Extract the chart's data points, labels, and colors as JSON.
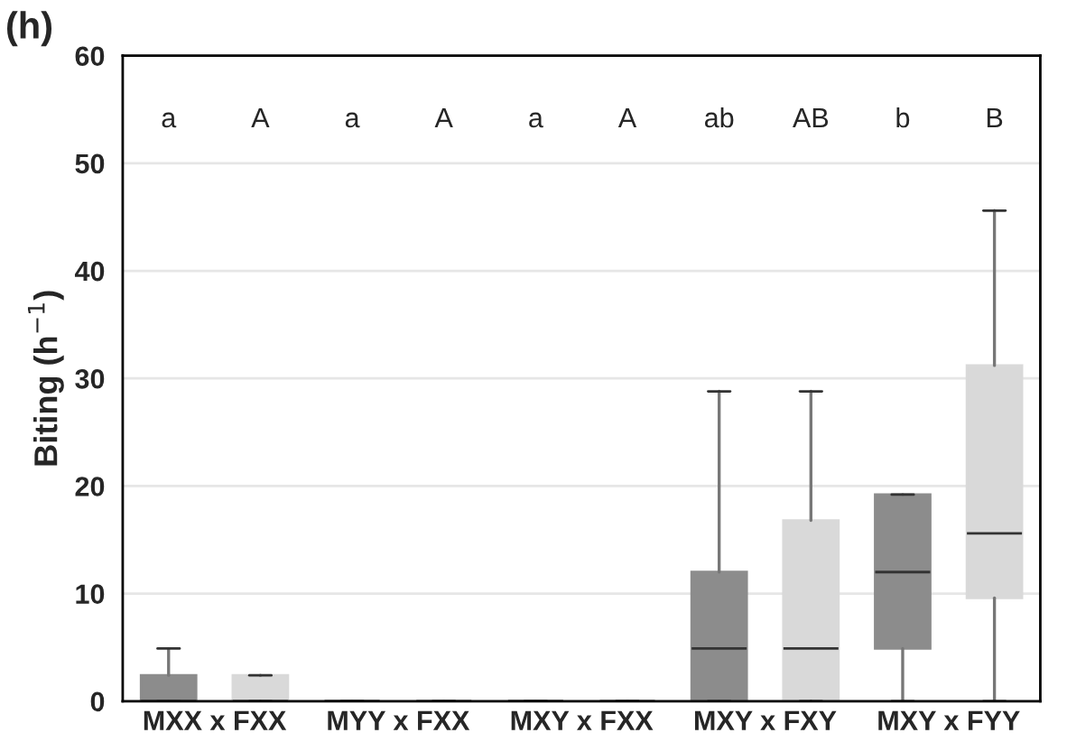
{
  "chart_data": {
    "type": "box",
    "title": "(h)",
    "ylabel": "Biting (h$^{−1}$)",
    "categories": [
      "MXX x FXX",
      "MYY x FXX",
      "MXY x FXX",
      "MXY x FXY",
      "MXY x FYY"
    ],
    "ylim": [
      0,
      60
    ],
    "yticks": [
      0,
      10,
      20,
      30,
      40,
      50,
      60
    ],
    "grid": "y",
    "annotations": [
      "a",
      "A",
      "a",
      "A",
      "a",
      "A",
      "ab",
      "AB",
      "b",
      "B"
    ],
    "series": [
      {
        "color": "#8c8c8c",
        "boxes": [
          {
            "low": 0,
            "q1": 0,
            "median": 0,
            "q3": 2.4,
            "high": 4.9
          },
          {
            "low": 0,
            "q1": 0,
            "median": 0,
            "q3": 0,
            "high": 0
          },
          {
            "low": 0,
            "q1": 0,
            "median": 0,
            "q3": 0,
            "high": 0
          },
          {
            "low": 0,
            "q1": 0,
            "median": 4.9,
            "q3": 12,
            "high": 28.8
          },
          {
            "low": 0,
            "q1": 4.9,
            "median": 12,
            "q3": 19.2,
            "high": 19.2
          }
        ]
      },
      {
        "color": "#d9d9d9",
        "boxes": [
          {
            "low": 0,
            "q1": 0,
            "median": 0,
            "q3": 2.4,
            "high": 2.4
          },
          {
            "low": 0,
            "q1": 0,
            "median": 0,
            "q3": 0,
            "high": 0
          },
          {
            "low": 0,
            "q1": 0,
            "median": 0,
            "q3": 0,
            "high": 0
          },
          {
            "low": 0,
            "q1": 0,
            "median": 4.9,
            "q3": 16.8,
            "high": 28.8
          },
          {
            "low": 0,
            "q1": 9.6,
            "median": 15.6,
            "q3": 31.2,
            "high": 45.6
          }
        ]
      }
    ]
  }
}
